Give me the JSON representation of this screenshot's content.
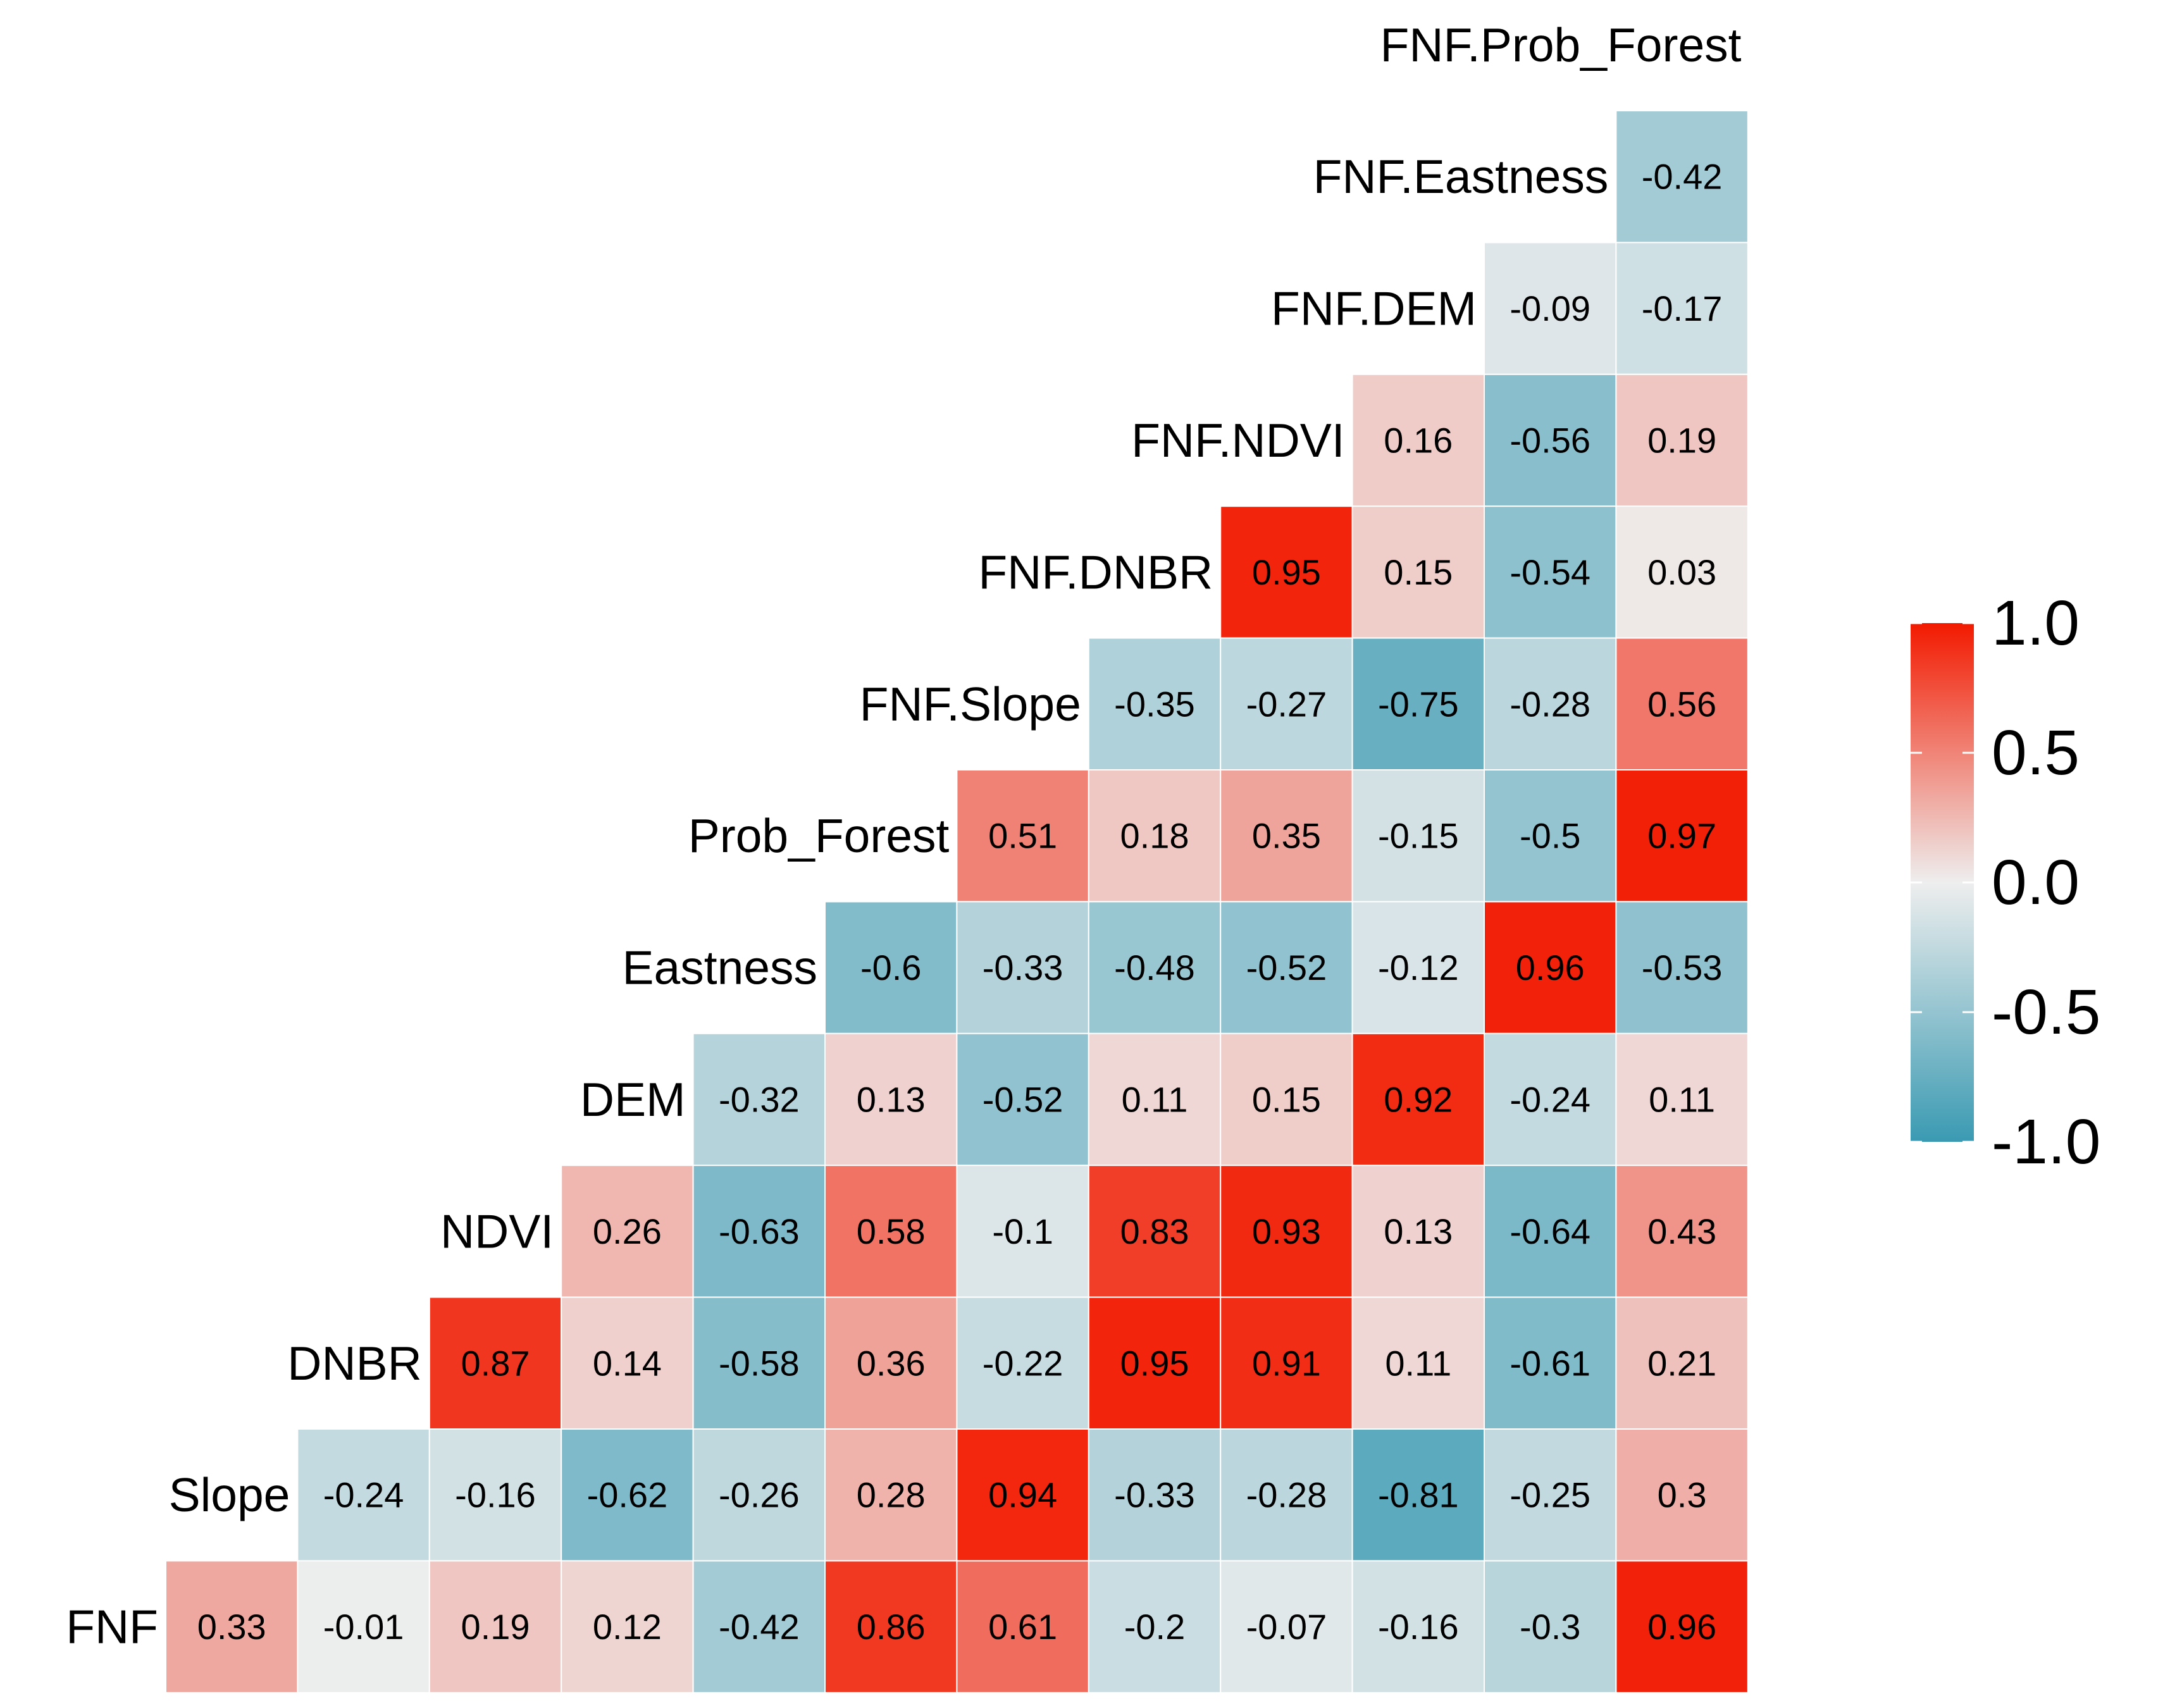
{
  "chart_data": {
    "type": "heatmap",
    "title": "",
    "variables": [
      "FNF",
      "Slope",
      "DNBR",
      "NDVI",
      "DEM",
      "Eastness",
      "Prob_Forest",
      "FNF.Slope",
      "FNF.DNBR",
      "FNF.NDVI",
      "FNF.DEM",
      "FNF.Eastness",
      "FNF.Prob_Forest"
    ],
    "row_labels": [
      "FNF.Eastness",
      "FNF.DEM",
      "FNF.NDVI",
      "FNF.DNBR",
      "FNF.Slope",
      "Prob_Forest",
      "Eastness",
      "DEM",
      "NDVI",
      "DNBR",
      "Slope",
      "FNF"
    ],
    "top_label": "FNF.Prob_Forest",
    "rows": [
      [
        -0.42
      ],
      [
        -0.09,
        -0.17
      ],
      [
        0.16,
        -0.56,
        0.19
      ],
      [
        0.95,
        0.15,
        -0.54,
        0.03
      ],
      [
        -0.35,
        -0.27,
        -0.75,
        -0.28,
        0.56
      ],
      [
        0.51,
        0.18,
        0.35,
        -0.15,
        -0.5,
        0.97
      ],
      [
        -0.6,
        -0.33,
        -0.48,
        -0.52,
        -0.12,
        0.96,
        -0.53
      ],
      [
        -0.32,
        0.13,
        -0.52,
        0.11,
        0.15,
        0.92,
        -0.24,
        0.11
      ],
      [
        0.26,
        -0.63,
        0.58,
        -0.1,
        0.83,
        0.93,
        0.13,
        -0.64,
        0.43
      ],
      [
        0.87,
        0.14,
        -0.58,
        0.36,
        -0.22,
        0.95,
        0.91,
        0.11,
        -0.61,
        0.21
      ],
      [
        -0.24,
        -0.16,
        -0.62,
        -0.26,
        0.28,
        0.94,
        -0.33,
        -0.28,
        -0.81,
        -0.25,
        0.3
      ],
      [
        0.33,
        -0.01,
        0.19,
        0.12,
        -0.42,
        0.86,
        0.61,
        -0.2,
        -0.07,
        -0.16,
        -0.3,
        0.96
      ]
    ],
    "color_scale": {
      "low": "#3A9AB2",
      "mid": "#EEEEEE",
      "high": "#F21A00",
      "limits": [
        -1,
        1
      ]
    },
    "legend": {
      "ticks": [
        "1.0",
        "0.5",
        "0.0",
        "-0.5",
        "-1.0"
      ],
      "values": [
        1,
        0.5,
        0,
        -0.5,
        -1
      ],
      "position": "right"
    }
  }
}
